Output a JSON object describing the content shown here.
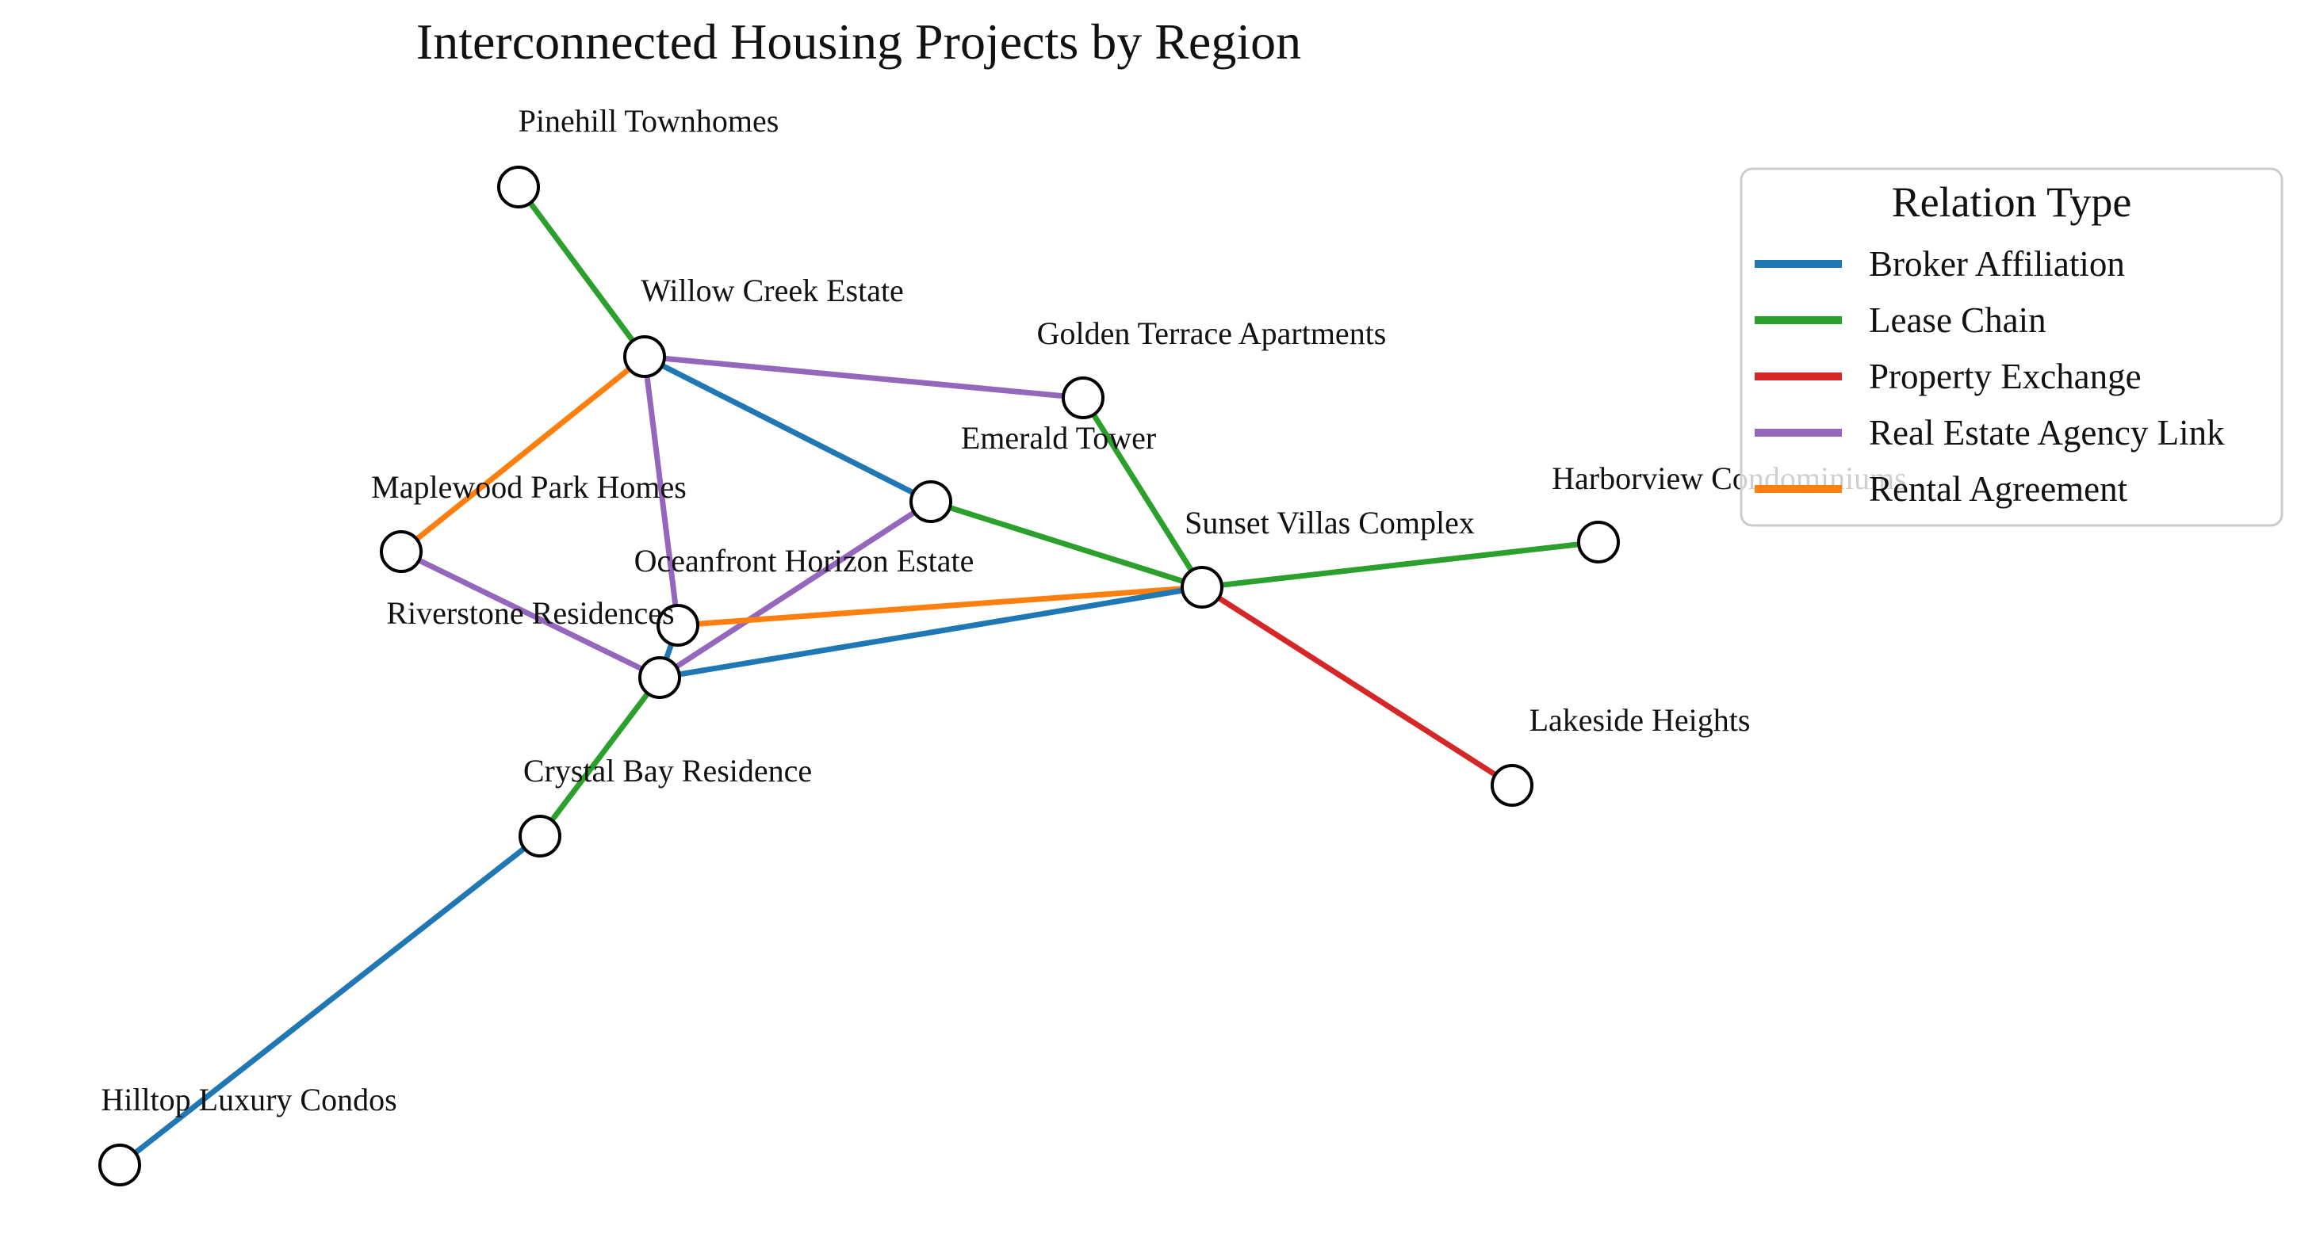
{
  "title": "Interconnected Housing Projects by Region",
  "legend": {
    "title": "Relation Type",
    "items": [
      {
        "key": "broker",
        "label": "Broker Affiliation",
        "color": "#1f77b4"
      },
      {
        "key": "lease",
        "label": "Lease Chain",
        "color": "#2ca02c"
      },
      {
        "key": "exchange",
        "label": "Property Exchange",
        "color": "#d62728"
      },
      {
        "key": "agency",
        "label": "Real Estate Agency Link",
        "color": "#9467bd"
      },
      {
        "key": "rental",
        "label": "Rental Agreement",
        "color": "#ff7f0e"
      }
    ]
  },
  "nodes": [
    {
      "id": "pinehill",
      "label": "Pinehill Townhomes"
    },
    {
      "id": "willow",
      "label": "Willow Creek Estate"
    },
    {
      "id": "golden",
      "label": "Golden Terrace Apartments"
    },
    {
      "id": "emerald",
      "label": "Emerald Tower"
    },
    {
      "id": "maplewood",
      "label": "Maplewood Park Homes"
    },
    {
      "id": "harborview",
      "label": "Harborview Condominiums"
    },
    {
      "id": "sunset",
      "label": "Sunset Villas Complex"
    },
    {
      "id": "oceanfront",
      "label": "Oceanfront Horizon Estate"
    },
    {
      "id": "riverstone",
      "label": "Riverstone Residences"
    },
    {
      "id": "lakeside",
      "label": "Lakeside Heights"
    },
    {
      "id": "crystal",
      "label": "Crystal Bay Residence"
    },
    {
      "id": "hilltop",
      "label": "Hilltop Luxury Condos"
    }
  ],
  "edges": [
    {
      "source": "pinehill",
      "target": "willow",
      "type": "lease"
    },
    {
      "source": "willow",
      "target": "golden",
      "type": "agency"
    },
    {
      "source": "willow",
      "target": "emerald",
      "type": "broker"
    },
    {
      "source": "willow",
      "target": "maplewood",
      "type": "rental"
    },
    {
      "source": "willow",
      "target": "oceanfront",
      "type": "agency"
    },
    {
      "source": "golden",
      "target": "sunset",
      "type": "lease"
    },
    {
      "source": "emerald",
      "target": "sunset",
      "type": "lease"
    },
    {
      "source": "emerald",
      "target": "riverstone",
      "type": "agency"
    },
    {
      "source": "maplewood",
      "target": "riverstone",
      "type": "agency"
    },
    {
      "source": "sunset",
      "target": "harborview",
      "type": "lease"
    },
    {
      "source": "sunset",
      "target": "lakeside",
      "type": "exchange"
    },
    {
      "source": "sunset",
      "target": "oceanfront",
      "type": "rental"
    },
    {
      "source": "sunset",
      "target": "riverstone",
      "type": "broker"
    },
    {
      "source": "oceanfront",
      "target": "riverstone",
      "type": "broker"
    },
    {
      "source": "riverstone",
      "target": "crystal",
      "type": "lease"
    },
    {
      "source": "crystal",
      "target": "hilltop",
      "type": "broker"
    }
  ]
}
